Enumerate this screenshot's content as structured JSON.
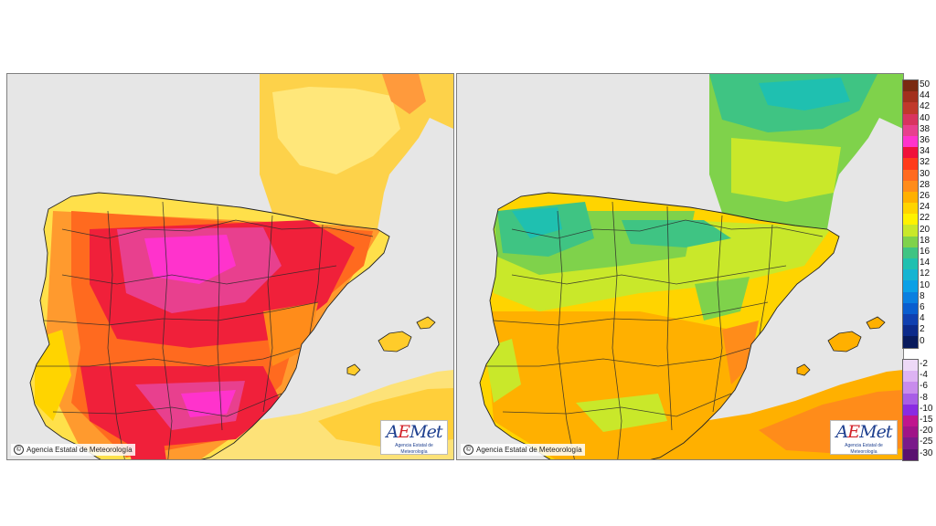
{
  "maps": [
    {
      "id": "left",
      "copyright": "Agencia Estatal de Meteorología",
      "logo": {
        "brand": "AEMet",
        "subtitle": "Agencia Estatal de Meteorología"
      }
    },
    {
      "id": "right",
      "copyright": "Agencia Estatal de Meteorología",
      "logo": {
        "brand": "AEMet",
        "subtitle": "Agencia Estatal de Meteorología"
      }
    }
  ],
  "legend": {
    "positive": [
      {
        "label": "50",
        "color": "#7a2a12"
      },
      {
        "label": "44",
        "color": "#a2301d"
      },
      {
        "label": "42",
        "color": "#c0392b"
      },
      {
        "label": "40",
        "color": "#d8345f"
      },
      {
        "label": "38",
        "color": "#e8408e"
      },
      {
        "label": "36",
        "color": "#ff33cc"
      },
      {
        "label": "34",
        "color": "#f0103a"
      },
      {
        "label": "32",
        "color": "#ff3a1a"
      },
      {
        "label": "30",
        "color": "#ff6a1f"
      },
      {
        "label": "28",
        "color": "#ff8c1a"
      },
      {
        "label": "26",
        "color": "#ffb000"
      },
      {
        "label": "24",
        "color": "#ffd400"
      },
      {
        "label": "22",
        "color": "#fff200"
      },
      {
        "label": "20",
        "color": "#c9e82a"
      },
      {
        "label": "18",
        "color": "#7fd24b"
      },
      {
        "label": "16",
        "color": "#3fc483"
      },
      {
        "label": "14",
        "color": "#1fc0b0"
      },
      {
        "label": "12",
        "color": "#16b4d2"
      },
      {
        "label": "10",
        "color": "#0ba0e6"
      },
      {
        "label": "8",
        "color": "#0a7fe0"
      },
      {
        "label": "6",
        "color": "#0a5ecf"
      },
      {
        "label": "4",
        "color": "#1040b0"
      },
      {
        "label": "2",
        "color": "#0c2a8a"
      },
      {
        "label": "0",
        "color": "#081a5c"
      }
    ],
    "negative": [
      {
        "label": "-2",
        "color": "#eed9f7"
      },
      {
        "label": "-4",
        "color": "#ddb3f2"
      },
      {
        "label": "-6",
        "color": "#c88cec"
      },
      {
        "label": "-8",
        "color": "#a85ee6"
      },
      {
        "label": "-10",
        "color": "#8a2be2"
      },
      {
        "label": "-15",
        "color": "#c0158e"
      },
      {
        "label": "-20",
        "color": "#a01488"
      },
      {
        "label": "-25",
        "color": "#7a1a8a"
      },
      {
        "label": "-30",
        "color": "#5a1270"
      }
    ]
  }
}
